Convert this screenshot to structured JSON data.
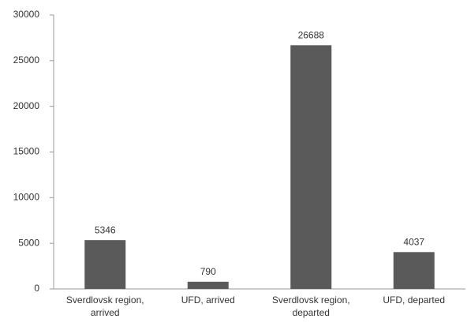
{
  "chart_data": {
    "type": "bar",
    "categories": [
      "Sverdlovsk region, arrived",
      "UFD, arrived",
      "Sverdlovsk region, departed",
      "UFD, departed"
    ],
    "values": [
      5346,
      790,
      26688,
      4037
    ],
    "color": "#5a5a5a",
    "ylim": [
      0,
      30000
    ],
    "yticks": [
      0,
      5000,
      10000,
      15000,
      20000,
      25000,
      30000
    ],
    "grid": false
  }
}
